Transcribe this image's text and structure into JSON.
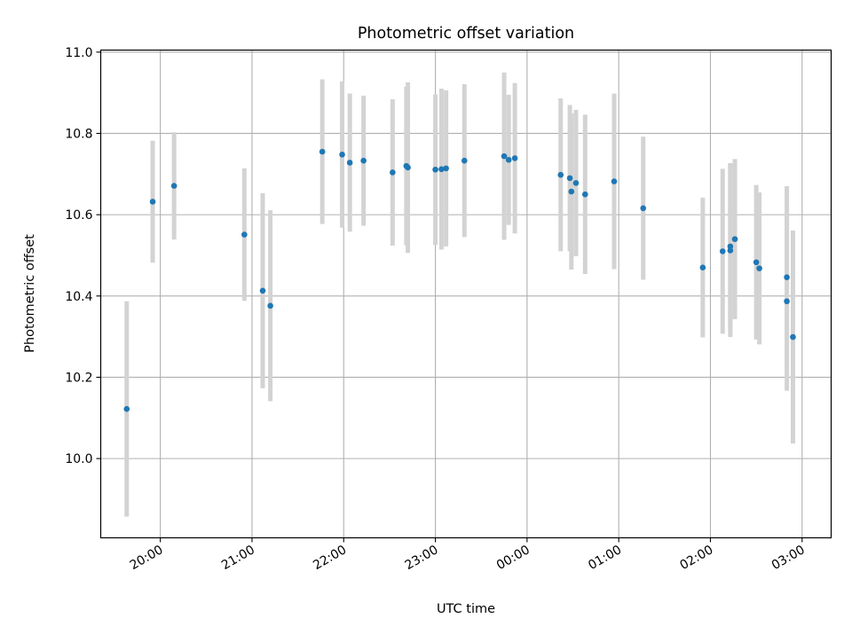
{
  "chart_data": {
    "type": "scatter",
    "title": "Photometric offset variation",
    "xlabel": "UTC time",
    "ylabel": "Photometric offset",
    "x_axis": "time",
    "x_ticks": [
      "20:00",
      "21:00",
      "22:00",
      "23:00",
      "00:00",
      "01:00",
      "02:00",
      "03:00"
    ],
    "y_ticks": [
      "10.0",
      "10.2",
      "10.4",
      "10.6",
      "10.8",
      "11.0"
    ],
    "xlim": [
      "19:21",
      "03:19"
    ],
    "ylim": [
      9.805,
      11.005
    ],
    "grid": true,
    "point_color": "#1f77b4",
    "errorbar_color": "#d3d3d3",
    "points": [
      {
        "x": "19:38",
        "y": 10.122,
        "err": 0.265
      },
      {
        "x": "19:55",
        "y": 10.632,
        "err": 0.15
      },
      {
        "x": "20:09",
        "y": 10.671,
        "err": 0.132
      },
      {
        "x": "20:55",
        "y": 10.551,
        "err": 0.163
      },
      {
        "x": "21:07",
        "y": 10.413,
        "err": 0.24
      },
      {
        "x": "21:12",
        "y": 10.376,
        "err": 0.235
      },
      {
        "x": "21:46",
        "y": 10.755,
        "err": 0.178
      },
      {
        "x": "21:59",
        "y": 10.748,
        "err": 0.18
      },
      {
        "x": "22:04",
        "y": 10.728,
        "err": 0.17
      },
      {
        "x": "22:13",
        "y": 10.733,
        "err": 0.16
      },
      {
        "x": "22:32",
        "y": 10.704,
        "err": 0.18
      },
      {
        "x": "22:41",
        "y": 10.72,
        "err": 0.195
      },
      {
        "x": "22:42",
        "y": 10.716,
        "err": 0.21
      },
      {
        "x": "23:00",
        "y": 10.711,
        "err": 0.185
      },
      {
        "x": "23:04",
        "y": 10.712,
        "err": 0.198
      },
      {
        "x": "23:07",
        "y": 10.714,
        "err": 0.192
      },
      {
        "x": "23:19",
        "y": 10.733,
        "err": 0.188
      },
      {
        "x": "23:45",
        "y": 10.744,
        "err": 0.206
      },
      {
        "x": "23:48",
        "y": 10.735,
        "err": 0.16
      },
      {
        "x": "23:52",
        "y": 10.739,
        "err": 0.185
      },
      {
        "x": "00:22",
        "y": 10.698,
        "err": 0.188
      },
      {
        "x": "00:28",
        "y": 10.69,
        "err": 0.18
      },
      {
        "x": "00:29",
        "y": 10.657,
        "err": 0.192
      },
      {
        "x": "00:32",
        "y": 10.678,
        "err": 0.18
      },
      {
        "x": "00:38",
        "y": 10.65,
        "err": 0.196
      },
      {
        "x": "00:57",
        "y": 10.682,
        "err": 0.216
      },
      {
        "x": "01:16",
        "y": 10.616,
        "err": 0.176
      },
      {
        "x": "01:55",
        "y": 10.47,
        "err": 0.172
      },
      {
        "x": "02:08",
        "y": 10.51,
        "err": 0.203
      },
      {
        "x": "02:13",
        "y": 10.512,
        "err": 0.213
      },
      {
        "x": "02:13",
        "y": 10.522,
        "err": 0.205
      },
      {
        "x": "02:16",
        "y": 10.54,
        "err": 0.197
      },
      {
        "x": "02:30",
        "y": 10.483,
        "err": 0.19
      },
      {
        "x": "02:32",
        "y": 10.468,
        "err": 0.187
      },
      {
        "x": "02:50",
        "y": 10.446,
        "err": 0.224
      },
      {
        "x": "02:50",
        "y": 10.387,
        "err": 0.22
      },
      {
        "x": "02:54",
        "y": 10.299,
        "err": 0.262
      }
    ]
  }
}
